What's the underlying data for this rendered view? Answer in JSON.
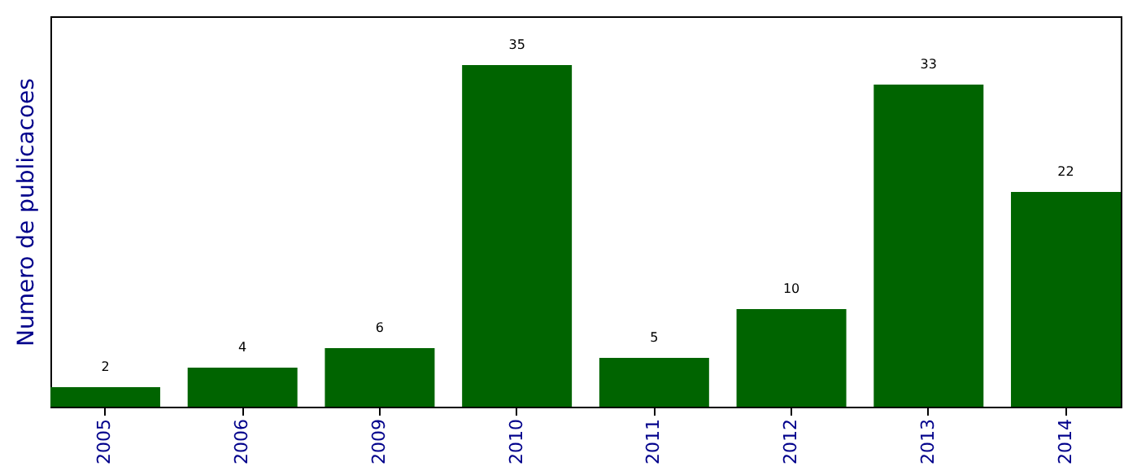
{
  "chart_data": {
    "type": "bar",
    "ylabel": "Numero de publicacoes",
    "categories": [
      "2005",
      "2006",
      "2009",
      "2010",
      "2011",
      "2012",
      "2013",
      "2014"
    ],
    "values": [
      2,
      4,
      6,
      35,
      5,
      10,
      33,
      22
    ],
    "color": "#006400",
    "ylim": [
      0,
      40
    ],
    "grid": false,
    "data_labels": true,
    "tick_labels": "x"
  }
}
